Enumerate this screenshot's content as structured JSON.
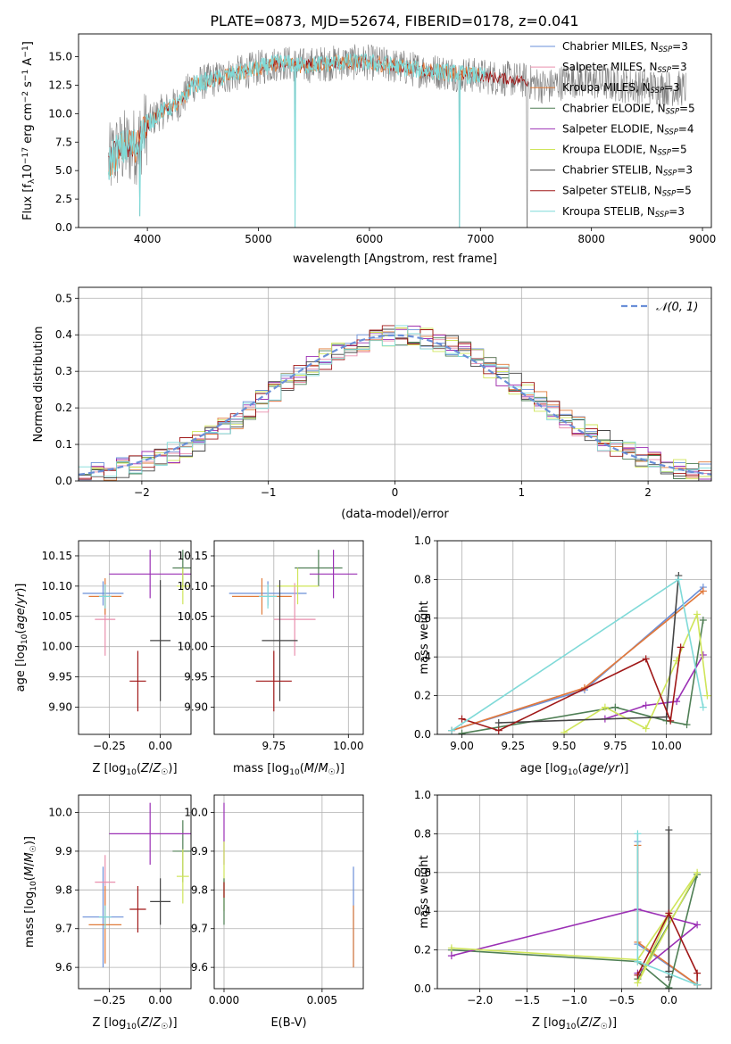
{
  "figure_title": "PLATE=0873, MJD=52674, FIBERID=0178, z=0.041",
  "colors": {
    "chabrier_miles": "#6a8fd8",
    "salpeter_miles": "#e98fae",
    "kroupa_miles": "#e07b3a",
    "chabrier_elodie": "#4f7f55",
    "salpeter_elodie": "#9b30b5",
    "kroupa_elodie": "#cfe55a",
    "chabrier_stelib": "#444444",
    "salpeter_stelib": "#a01818",
    "kroupa_stelib": "#7fdad8",
    "normal_curve": "#6a8fd8",
    "grid": "#b0b0b0"
  },
  "legend_labels": [
    "Chabrier MILES, N_SSP=3",
    "Salpeter MILES, N_SSP=3",
    "Kroupa MILES, N_SSP=3",
    "Chabrier ELODIE, N_SSP=5",
    "Salpeter ELODIE, N_SSP=4",
    "Kroupa ELODIE, N_SSP=5",
    "Chabrier STELIB, N_SSP=3",
    "Salpeter STELIB, N_SSP=5",
    "Kroupa STELIB, N_SSP=3"
  ],
  "chart_data": [
    {
      "id": "spectrum",
      "type": "line",
      "title": "PLATE=0873, MJD=52674, FIBERID=0178, z=0.041",
      "xlabel": "wavelength [Angstrom, rest frame]",
      "ylabel": "Flux [f_λ 10^-17 erg cm^-2 s^-1 A^-1]",
      "xlim": [
        3380,
        9080
      ],
      "ylim": [
        0,
        17
      ],
      "xticks": [
        "4000",
        "5000",
        "6000",
        "7000",
        "8000",
        "9000"
      ],
      "yticks": [
        "0.0",
        "2.5",
        "5.0",
        "7.5",
        "10.0",
        "12.5",
        "15.0"
      ],
      "grid": false,
      "legend": "top-right",
      "continuum_x": [
        3650,
        3700,
        3800,
        3900,
        4000,
        4100,
        4200,
        4300,
        4400,
        4600,
        4800,
        5000,
        5200,
        5400,
        5600,
        5800,
        6000,
        6200,
        6400,
        6600,
        6800,
        7000,
        7200,
        7400,
        7600,
        7800,
        8000,
        8200,
        8400,
        8600,
        8800
      ],
      "continuum_y": [
        5.5,
        6.5,
        7.0,
        7.2,
        9.0,
        10.0,
        10.5,
        11.0,
        12.5,
        13.0,
        13.5,
        14.0,
        14.5,
        14.2,
        14.4,
        14.5,
        14.5,
        14.2,
        13.9,
        13.7,
        13.5,
        13.3,
        13.1,
        12.9,
        12.3,
        13.0,
        12.8,
        12.6,
        12.4,
        12.3,
        12.2
      ],
      "dips": [
        [
          3930,
          1.0
        ],
        [
          5330,
          0.0
        ],
        [
          6810,
          0.0
        ],
        [
          7420,
          0.0
        ]
      ]
    },
    {
      "id": "residuals",
      "type": "histogram",
      "xlabel": "(data-model)/error",
      "ylabel": "Normed distribution",
      "xlim": [
        -2.5,
        2.5
      ],
      "ylim": [
        0,
        0.53
      ],
      "xticks": [
        "−2",
        "−1",
        "0",
        "1",
        "2"
      ],
      "yticks": [
        "0.0",
        "0.1",
        "0.2",
        "0.3",
        "0.4",
        "0.5"
      ],
      "grid": true,
      "legend": "top-right",
      "legend_label": "N(0,1)",
      "bin_width": 0.1
    },
    {
      "id": "age_vs_Z",
      "type": "errorbar",
      "xlabel": "Z [log10(Z/Z☉)]",
      "ylabel": "age  [log10(age/yr)]",
      "xlim": [
        -0.4,
        0.15
      ],
      "ylim": [
        9.855,
        10.175
      ],
      "xticks": [
        "−0.25",
        "0.00"
      ],
      "yticks": [
        "9.90",
        "9.95",
        "10.00",
        "10.05",
        "10.10",
        "10.15"
      ],
      "grid": true,
      "points": [
        {
          "x": -0.28,
          "xerr": 0.1,
          "y": 10.088,
          "yerr": 0.02,
          "c": "chabrier_miles"
        },
        {
          "x": -0.27,
          "xerr": 0.05,
          "y": 10.045,
          "yerr": 0.06,
          "c": "salpeter_miles"
        },
        {
          "x": -0.27,
          "xerr": 0.08,
          "y": 10.083,
          "yerr": 0.03,
          "c": "kroupa_miles"
        },
        {
          "x": 0.11,
          "xerr": 0.05,
          "y": 10.13,
          "yerr": 0.03,
          "c": "chabrier_elodie"
        },
        {
          "x": -0.05,
          "xerr": 0.2,
          "y": 10.12,
          "yerr": 0.04,
          "c": "salpeter_elodie"
        },
        {
          "x": 0.11,
          "xerr": 0.03,
          "y": 10.1,
          "yerr": 0.03,
          "c": "kroupa_elodie"
        },
        {
          "x": 0.0,
          "xerr": 0.05,
          "y": 10.01,
          "yerr": 0.1,
          "c": "chabrier_stelib"
        },
        {
          "x": -0.11,
          "xerr": 0.04,
          "y": 9.943,
          "yerr": 0.05,
          "c": "salpeter_stelib"
        },
        {
          "x": -0.27,
          "xerr": 0.03,
          "y": 10.083,
          "yerr": 0.02,
          "c": "kroupa_stelib"
        }
      ]
    },
    {
      "id": "age_vs_mass",
      "type": "errorbar",
      "xlabel": "mass [log10(M/M☉)]",
      "ylabel": "",
      "xlim": [
        9.55,
        10.05
      ],
      "ylim": [
        9.855,
        10.175
      ],
      "xticks": [
        "9.75",
        "10.00"
      ],
      "yticks": [
        "9.90",
        "9.95",
        "10.00",
        "10.05",
        "10.10",
        "10.15"
      ],
      "grid": true,
      "points": [
        {
          "x": 9.73,
          "xerr": 0.13,
          "y": 10.088,
          "yerr": 0.02,
          "c": "chabrier_miles"
        },
        {
          "x": 9.82,
          "xerr": 0.07,
          "y": 10.045,
          "yerr": 0.06,
          "c": "salpeter_miles"
        },
        {
          "x": 9.71,
          "xerr": 0.1,
          "y": 10.083,
          "yerr": 0.03,
          "c": "kroupa_miles"
        },
        {
          "x": 9.9,
          "xerr": 0.08,
          "y": 10.13,
          "yerr": 0.03,
          "c": "chabrier_elodie"
        },
        {
          "x": 9.95,
          "xerr": 0.08,
          "y": 10.12,
          "yerr": 0.04,
          "c": "salpeter_elodie"
        },
        {
          "x": 9.83,
          "xerr": 0.07,
          "y": 10.1,
          "yerr": 0.03,
          "c": "kroupa_elodie"
        },
        {
          "x": 9.77,
          "xerr": 0.06,
          "y": 10.01,
          "yerr": 0.1,
          "c": "chabrier_stelib"
        },
        {
          "x": 9.75,
          "xerr": 0.06,
          "y": 9.943,
          "yerr": 0.05,
          "c": "salpeter_stelib"
        },
        {
          "x": 9.73,
          "xerr": 0.03,
          "y": 10.083,
          "yerr": 0.02,
          "c": "kroupa_stelib"
        }
      ]
    },
    {
      "id": "massweight_vs_age",
      "type": "line",
      "xlabel": "age  [log10(age/yr)]",
      "ylabel": "mass weight",
      "xlim": [
        8.88,
        10.22
      ],
      "ylim": [
        0,
        1
      ],
      "xticks": [
        "9.00",
        "9.25",
        "9.50",
        "9.75",
        "10.00"
      ],
      "yticks": [
        "0.0",
        "0.2",
        "0.4",
        "0.6",
        "0.8",
        "1.0"
      ],
      "grid": true,
      "series": [
        {
          "c": "chabrier_miles",
          "x": [
            8.95,
            9.6,
            10.18
          ],
          "y": [
            0.02,
            0.23,
            0.76
          ]
        },
        {
          "c": "salpeter_miles",
          "x": [
            8.95,
            9.6,
            10.18
          ],
          "y": [
            0.02,
            0.24,
            0.74
          ]
        },
        {
          "c": "kroupa_miles",
          "x": [
            8.95,
            9.6,
            10.18
          ],
          "y": [
            0.02,
            0.24,
            0.74
          ]
        },
        {
          "c": "chabrier_elodie",
          "x": [
            9.0,
            9.75,
            10.0,
            10.1,
            10.18
          ],
          "y": [
            0.005,
            0.14,
            0.07,
            0.05,
            0.59
          ]
        },
        {
          "c": "salpeter_elodie",
          "x": [
            9.7,
            9.9,
            10.05,
            10.18
          ],
          "y": [
            0.08,
            0.15,
            0.17,
            0.41
          ]
        },
        {
          "c": "kroupa_elodie",
          "x": [
            9.5,
            9.7,
            9.9,
            10.05,
            10.15,
            10.2
          ],
          "y": [
            0.01,
            0.14,
            0.03,
            0.38,
            0.62,
            0.2
          ]
        },
        {
          "c": "chabrier_stelib",
          "x": [
            9.18,
            10.0,
            10.06
          ],
          "y": [
            0.06,
            0.09,
            0.82
          ]
        },
        {
          "c": "salpeter_stelib",
          "x": [
            9.0,
            9.18,
            9.9,
            10.02,
            10.07
          ],
          "y": [
            0.08,
            0.02,
            0.39,
            0.07,
            0.45
          ]
        },
        {
          "c": "kroupa_stelib",
          "x": [
            8.95,
            10.06,
            10.18
          ],
          "y": [
            0.02,
            0.8,
            0.14
          ]
        }
      ]
    },
    {
      "id": "mass_vs_Z",
      "type": "errorbar",
      "xlabel": "Z [log10(Z/Z☉)]",
      "ylabel": "mass [log10(M/M☉)]",
      "xlim": [
        -0.4,
        0.15
      ],
      "ylim": [
        9.545,
        10.045
      ],
      "xticks": [
        "−0.25",
        "0.00"
      ],
      "yticks": [
        "9.6",
        "9.7",
        "9.8",
        "9.9",
        "10.0"
      ],
      "grid": true,
      "points": [
        {
          "x": -0.28,
          "xerr": 0.1,
          "y": 9.73,
          "yerr": 0.13,
          "c": "chabrier_miles"
        },
        {
          "x": -0.27,
          "xerr": 0.05,
          "y": 9.82,
          "yerr": 0.07,
          "c": "salpeter_miles"
        },
        {
          "x": -0.27,
          "xerr": 0.08,
          "y": 9.71,
          "yerr": 0.1,
          "c": "kroupa_miles"
        },
        {
          "x": 0.11,
          "xerr": 0.05,
          "y": 9.9,
          "yerr": 0.08,
          "c": "chabrier_elodie"
        },
        {
          "x": -0.05,
          "xerr": 0.2,
          "y": 9.945,
          "yerr": 0.08,
          "c": "salpeter_elodie"
        },
        {
          "x": 0.11,
          "xerr": 0.03,
          "y": 9.835,
          "yerr": 0.07,
          "c": "kroupa_elodie"
        },
        {
          "x": 0.0,
          "xerr": 0.05,
          "y": 9.77,
          "yerr": 0.06,
          "c": "chabrier_stelib"
        },
        {
          "x": -0.11,
          "xerr": 0.04,
          "y": 9.75,
          "yerr": 0.06,
          "c": "salpeter_stelib"
        },
        {
          "x": -0.27,
          "xerr": 0.03,
          "y": 9.73,
          "yerr": 0.03,
          "c": "kroupa_stelib"
        }
      ]
    },
    {
      "id": "mass_vs_ebv",
      "type": "errorbar",
      "xlabel": "E(B-V)",
      "ylabel": "",
      "xlim": [
        -0.0005,
        0.0071
      ],
      "ylim": [
        9.545,
        10.045
      ],
      "xticks": [
        "0.000",
        "0.005"
      ],
      "yticks": [
        "9.6",
        "9.7",
        "9.8",
        "9.9",
        "10.0"
      ],
      "grid": true,
      "points": [
        {
          "x": 0.0066,
          "xerr": 0,
          "y": 9.73,
          "yerr": 0.13,
          "c": "chabrier_miles"
        },
        {
          "x": 0.0066,
          "xerr": 0,
          "y": 9.68,
          "yerr": 0.08,
          "c": "kroupa_miles"
        },
        {
          "x": 0.0,
          "xerr": 0,
          "y": 9.945,
          "yerr": 0.08,
          "c": "salpeter_elodie"
        },
        {
          "x": 0.0,
          "xerr": 0,
          "y": 9.835,
          "yerr": 0.09,
          "c": "kroupa_elodie"
        },
        {
          "x": 0.0,
          "xerr": 0,
          "y": 9.77,
          "yerr": 0.06,
          "c": "chabrier_elodie"
        },
        {
          "x": 0.0,
          "xerr": 0,
          "y": 9.8,
          "yerr": 0.02,
          "c": "salpeter_stelib"
        }
      ]
    },
    {
      "id": "massweight_vs_Z",
      "type": "line",
      "xlabel": "Z [log10(Z/Z☉)]",
      "ylabel": "mass weight",
      "xlim": [
        -2.45,
        0.45
      ],
      "ylim": [
        0,
        1
      ],
      "xticks": [
        "−2.0",
        "−1.5",
        "−1.0",
        "−0.5",
        "0.0"
      ],
      "yticks": [
        "0.0",
        "0.2",
        "0.4",
        "0.6",
        "0.8",
        "1.0"
      ],
      "grid": true,
      "series": [
        {
          "c": "chabrier_miles",
          "x": [
            -0.33,
            -0.33,
            0.3
          ],
          "y": [
            0.76,
            0.23,
            0.02
          ]
        },
        {
          "c": "salpeter_miles",
          "x": [
            -0.33,
            -0.33,
            0.3
          ],
          "y": [
            0.74,
            0.24,
            0.02
          ]
        },
        {
          "c": "kroupa_miles",
          "x": [
            -0.33,
            -0.33,
            0.3
          ],
          "y": [
            0.74,
            0.24,
            0.02
          ]
        },
        {
          "c": "chabrier_elodie",
          "x": [
            -2.3,
            -0.33,
            0.0,
            0.3,
            -0.33
          ],
          "y": [
            0.2,
            0.14,
            0.005,
            0.59,
            0.05
          ]
        },
        {
          "c": "salpeter_elodie",
          "x": [
            -2.3,
            -0.33,
            0.3,
            -0.33
          ],
          "y": [
            0.17,
            0.41,
            0.33,
            0.08
          ]
        },
        {
          "c": "kroupa_elodie",
          "x": [
            -2.3,
            -0.33,
            0.3,
            -0.33,
            0.0
          ],
          "y": [
            0.21,
            0.15,
            0.6,
            0.03,
            0.38
          ]
        },
        {
          "c": "chabrier_stelib",
          "x": [
            0.0,
            0.0,
            0.0
          ],
          "y": [
            0.82,
            0.09,
            0.06
          ]
        },
        {
          "c": "salpeter_stelib",
          "x": [
            -0.33,
            0.0,
            0.3,
            0.3
          ],
          "y": [
            0.07,
            0.39,
            0.08,
            0.02
          ]
        },
        {
          "c": "kroupa_stelib",
          "x": [
            -0.33,
            -0.33,
            0.3
          ],
          "y": [
            0.8,
            0.14,
            0.02
          ]
        }
      ]
    }
  ]
}
